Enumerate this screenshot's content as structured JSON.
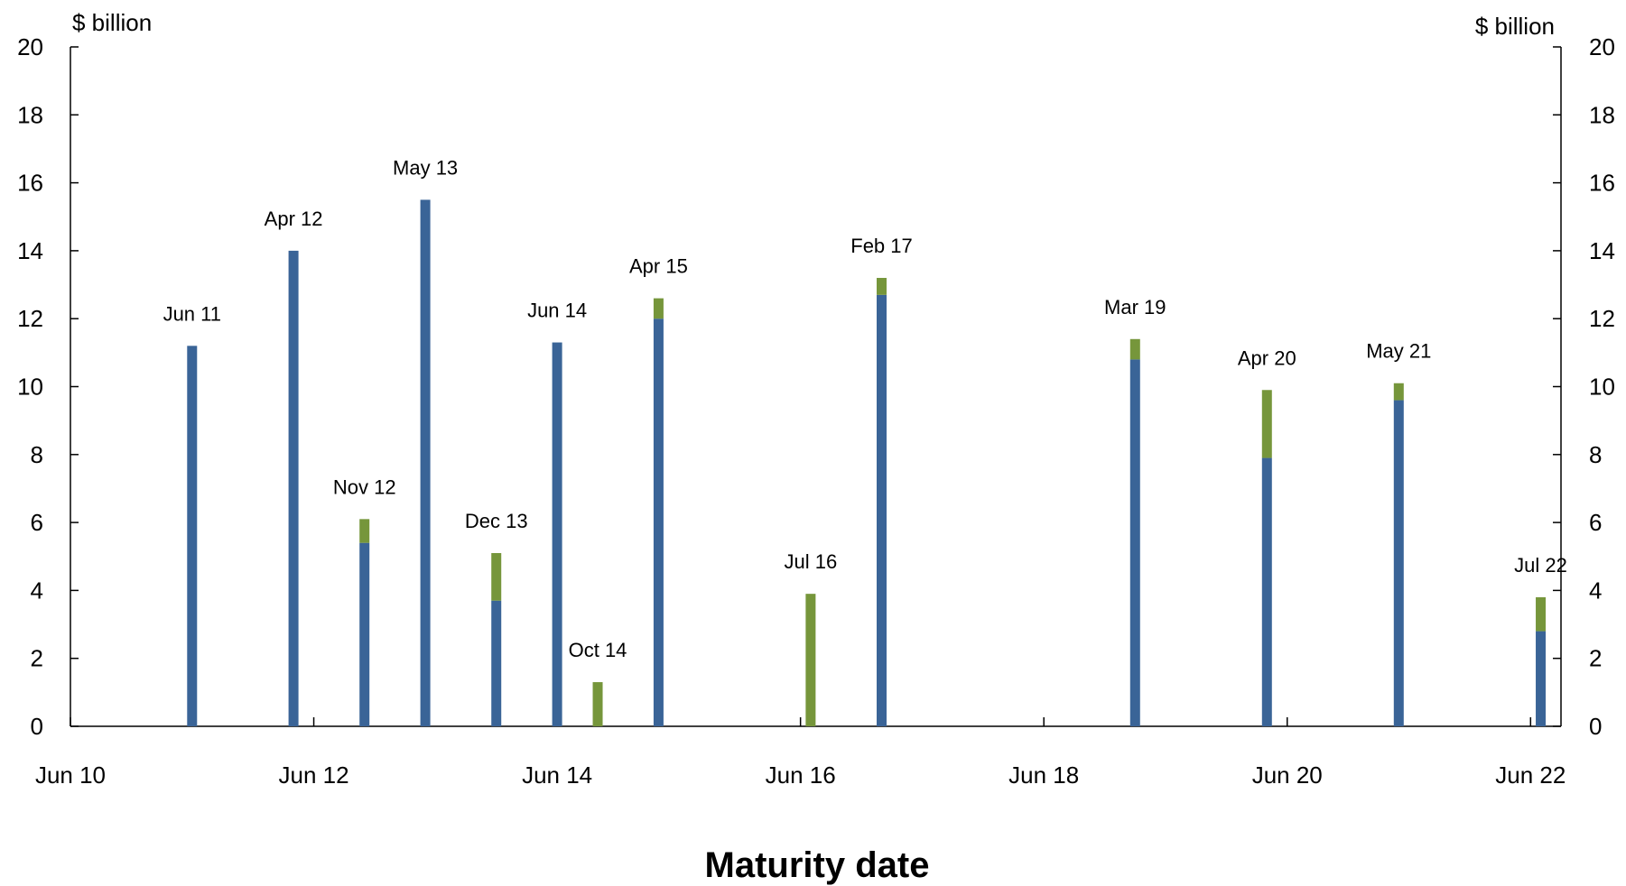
{
  "chart_data": {
    "type": "bar",
    "stacked": true,
    "xlabel": "Maturity date",
    "ylabel_left": "$ billion",
    "ylabel_right": "$ billion",
    "ylim": [
      0,
      20
    ],
    "yticks": [
      0,
      2,
      4,
      6,
      8,
      10,
      12,
      14,
      16,
      18,
      20
    ],
    "xaxis": {
      "start": "2010-06",
      "end": "2022-09",
      "ticks": [
        {
          "date": "2010-06",
          "label": "Jun 10"
        },
        {
          "date": "2012-06",
          "label": "Jun 12"
        },
        {
          "date": "2014-06",
          "label": "Jun 14"
        },
        {
          "date": "2016-06",
          "label": "Jun 16"
        },
        {
          "date": "2018-06",
          "label": "Jun 18"
        },
        {
          "date": "2020-06",
          "label": "Jun 20"
        },
        {
          "date": "2022-06",
          "label": "Jun 22"
        }
      ]
    },
    "colors": {
      "lower": "#3a6497",
      "upper": "#76963b"
    },
    "categories": [
      "Jun 11",
      "Apr 12",
      "Nov 12",
      "May 13",
      "Dec 13",
      "Jun 14",
      "Oct 14",
      "Apr 15",
      "Jul 16",
      "Feb 17",
      "Mar 19",
      "Apr 20",
      "May 21",
      "Jul 22"
    ],
    "dates": [
      "2011-06",
      "2012-04",
      "2012-11",
      "2013-05",
      "2013-12",
      "2014-06",
      "2014-10",
      "2015-04",
      "2016-07",
      "2017-02",
      "2019-03",
      "2020-04",
      "2021-05",
      "2022-07"
    ],
    "series": [
      {
        "values": [
          11.2,
          14.0,
          5.4,
          15.5,
          3.7,
          11.3,
          0,
          12.0,
          0,
          12.7,
          10.8,
          7.9,
          9.6,
          2.8
        ]
      },
      {
        "values": [
          0,
          0,
          0.7,
          0,
          1.4,
          0,
          1.3,
          0.6,
          3.9,
          0.5,
          0.6,
          2.0,
          0.5,
          1.0
        ]
      }
    ]
  }
}
